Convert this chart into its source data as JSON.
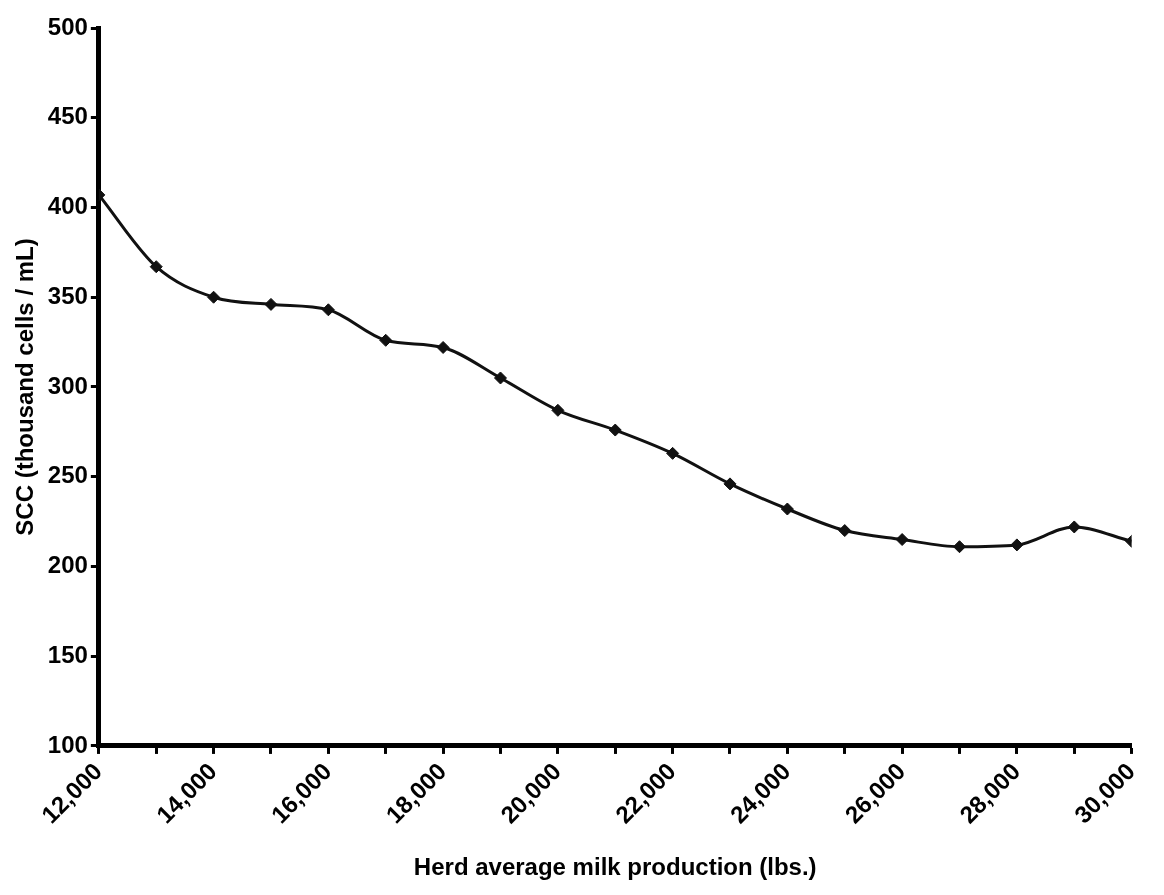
{
  "chart_data": {
    "type": "line",
    "xlabel": "Herd average milk production (lbs.)",
    "ylabel": "SCC (thousand cells / mL)",
    "x": [
      12000,
      13000,
      14000,
      15000,
      16000,
      17000,
      18000,
      19000,
      20000,
      21000,
      22000,
      23000,
      24000,
      25000,
      26000,
      27000,
      28000,
      29000,
      30000
    ],
    "series": [
      {
        "color": "#111111",
        "values": [
          407,
          367,
          350,
          346,
          343,
          326,
          322,
          305,
          287,
          276,
          263,
          246,
          232,
          220,
          215,
          211,
          212,
          222,
          214
        ]
      }
    ],
    "xlim": [
      12000,
      30000
    ],
    "xticks": [
      {
        "value": 12000,
        "label": "12,000"
      },
      {
        "value": 13000,
        "label": null
      },
      {
        "value": 14000,
        "label": "14,000"
      },
      {
        "value": 15000,
        "label": null
      },
      {
        "value": 16000,
        "label": "16,000"
      },
      {
        "value": 17000,
        "label": null
      },
      {
        "value": 18000,
        "label": "18,000"
      },
      {
        "value": 19000,
        "label": null
      },
      {
        "value": 20000,
        "label": "20,000"
      },
      {
        "value": 21000,
        "label": null
      },
      {
        "value": 22000,
        "label": "22,000"
      },
      {
        "value": 23000,
        "label": null
      },
      {
        "value": 24000,
        "label": "24,000"
      },
      {
        "value": 25000,
        "label": null
      },
      {
        "value": 26000,
        "label": "26,000"
      },
      {
        "value": 27000,
        "label": null
      },
      {
        "value": 28000,
        "label": "28,000"
      },
      {
        "value": 29000,
        "label": null
      },
      {
        "value": 30000,
        "label": "30,000"
      }
    ],
    "ylim": [
      100,
      500
    ],
    "yticks": [
      100,
      150,
      200,
      250,
      300,
      350,
      400,
      450,
      500
    ],
    "grid": false,
    "legend": false,
    "marker": "diamond",
    "line_style": "solid"
  }
}
